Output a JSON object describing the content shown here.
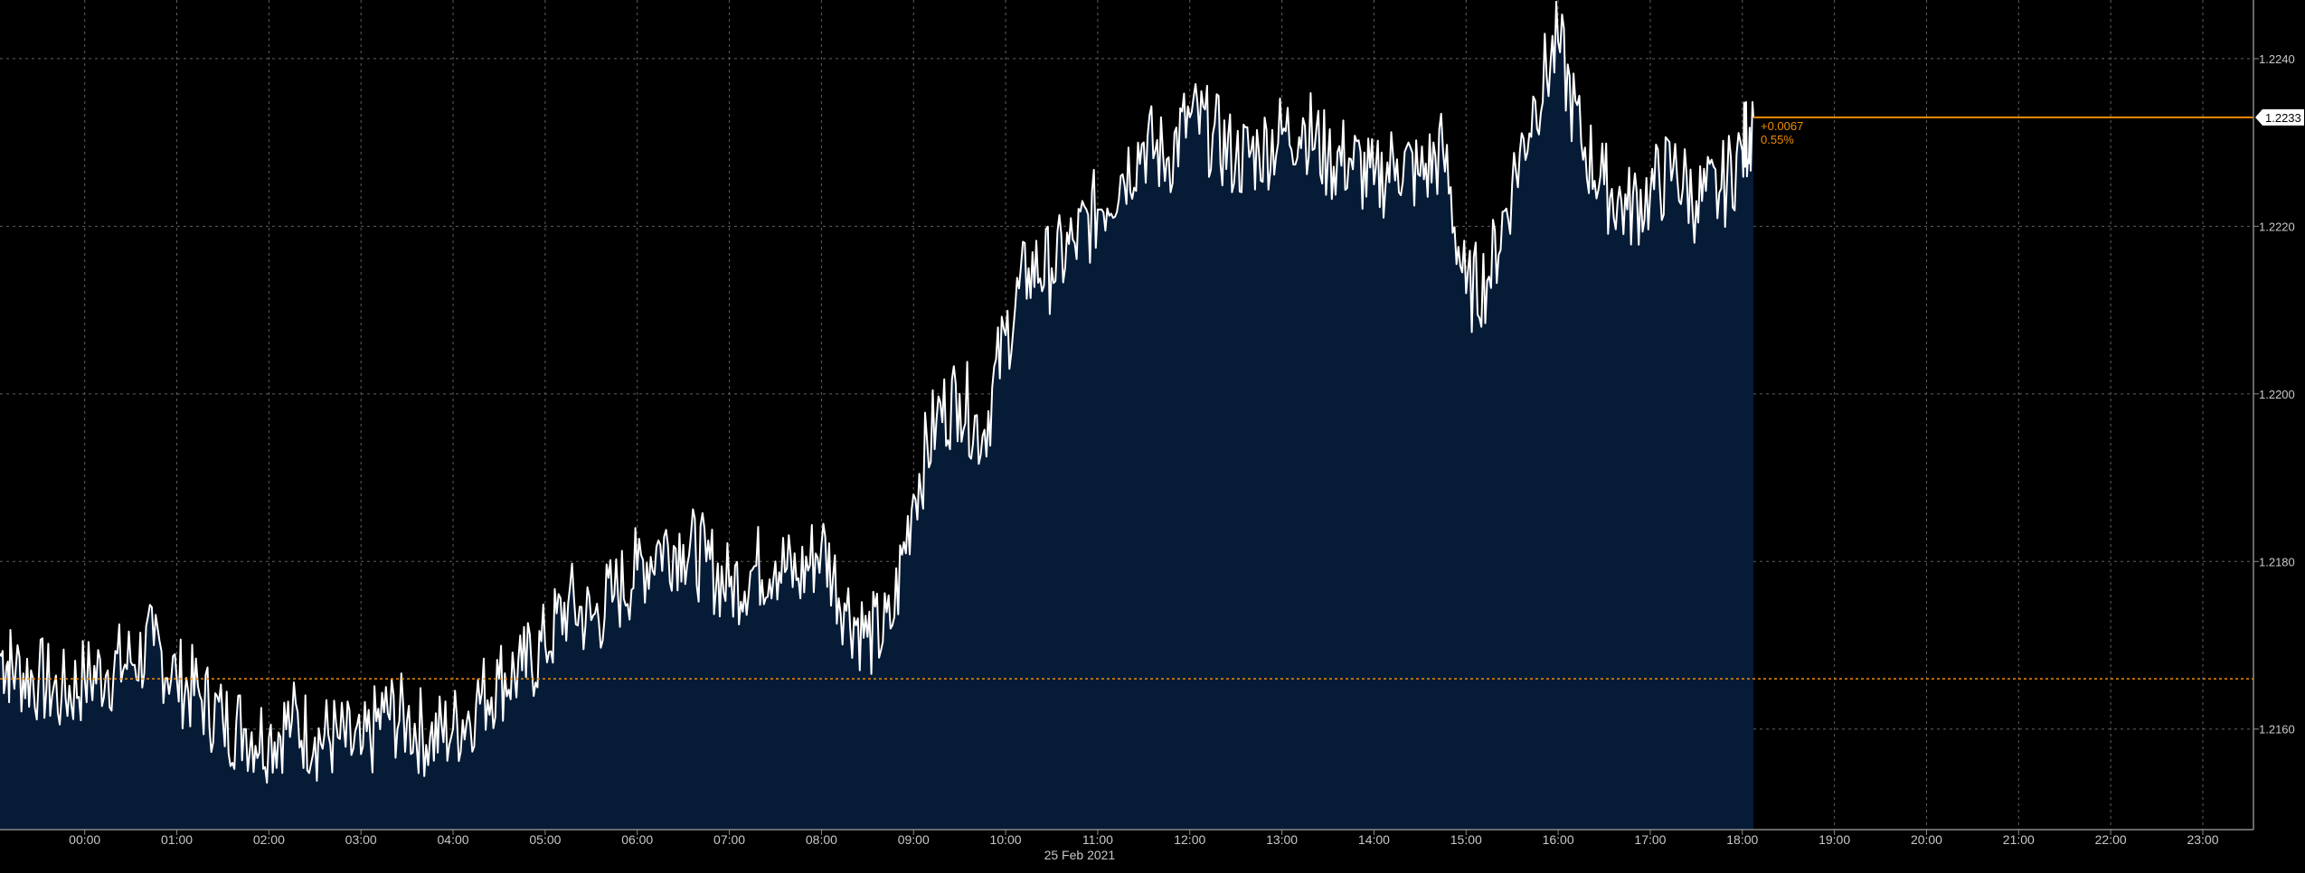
{
  "chart_data": {
    "type": "area",
    "title": "",
    "date_label": "25 Feb 2021",
    "xlabel": "",
    "ylabel": "",
    "x_ticks": [
      "00:00",
      "01:00",
      "02:00",
      "03:00",
      "04:00",
      "05:00",
      "06:00",
      "07:00",
      "08:00",
      "09:00",
      "10:00",
      "11:00",
      "12:00",
      "13:00",
      "14:00",
      "15:00",
      "16:00",
      "17:00",
      "18:00",
      "19:00",
      "20:00",
      "21:00",
      "22:00",
      "23:00"
    ],
    "y_ticks": [
      "1.2160",
      "1.2180",
      "1.2200",
      "1.2220",
      "1.2240"
    ],
    "xlim": [
      -0.92,
      23.55
    ],
    "ylim": [
      1.2148,
      1.2247
    ],
    "grid": true,
    "last_value": "1.2233",
    "change_abs": "+0.0067",
    "change_pct": "0.55%",
    "previous_close": 1.2166,
    "series": [
      {
        "x": [
          -0.92,
          -0.75,
          -0.5,
          -0.25,
          0,
          0.25,
          0.5,
          0.75,
          1,
          1.25,
          1.5,
          1.75,
          2,
          2.25,
          2.5,
          2.75,
          3,
          3.25,
          3.5,
          3.75,
          4,
          4.25,
          4.5,
          4.75,
          5,
          5.25,
          5.5,
          5.75,
          6,
          6.25,
          6.5,
          6.75,
          7,
          7.25,
          7.5,
          7.75,
          8,
          8.25,
          8.5,
          8.75,
          9,
          9.25,
          9.5,
          9.75,
          10,
          10.25,
          10.5,
          10.75,
          11,
          11.25,
          11.5,
          11.75,
          12,
          12.25,
          12.5,
          12.75,
          13,
          13.25,
          13.5,
          13.75,
          14,
          14.25,
          14.5,
          14.75,
          15,
          15.25,
          15.5,
          15.75,
          16,
          16.25,
          16.5,
          16.75,
          17,
          17.25,
          17.5,
          17.75,
          18,
          18.12
        ],
        "y": [
          1.2169,
          1.2167,
          1.2166,
          1.2164,
          1.2166,
          1.2167,
          1.2168,
          1.217,
          1.2166,
          1.2164,
          1.2161,
          1.216,
          1.2159,
          1.2161,
          1.2159,
          1.2159,
          1.2157,
          1.2162,
          1.2161,
          1.2159,
          1.216,
          1.2163,
          1.2166,
          1.2167,
          1.217,
          1.2175,
          1.2173,
          1.2176,
          1.2179,
          1.2182,
          1.2182,
          1.218,
          1.2177,
          1.2179,
          1.218,
          1.2178,
          1.2182,
          1.2175,
          1.2171,
          1.2172,
          1.2188,
          1.2197,
          1.22,
          1.2195,
          1.2207,
          1.2215,
          1.2215,
          1.2218,
          1.2222,
          1.2226,
          1.223,
          1.2228,
          1.2233,
          1.2231,
          1.2228,
          1.2229,
          1.2231,
          1.2232,
          1.2228,
          1.2228,
          1.2225,
          1.2228,
          1.2226,
          1.2229,
          1.2212,
          1.2214,
          1.2225,
          1.2235,
          1.2242,
          1.223,
          1.2225,
          1.2222,
          1.2224,
          1.2227,
          1.2223,
          1.2224,
          1.2229,
          1.2233
        ]
      }
    ],
    "colors": {
      "background": "#000000",
      "fill": "#061b36",
      "line": "#ffffff",
      "grid": "#5f5f5f",
      "accent": "#f08c00",
      "label": "#c8c8c8"
    }
  }
}
